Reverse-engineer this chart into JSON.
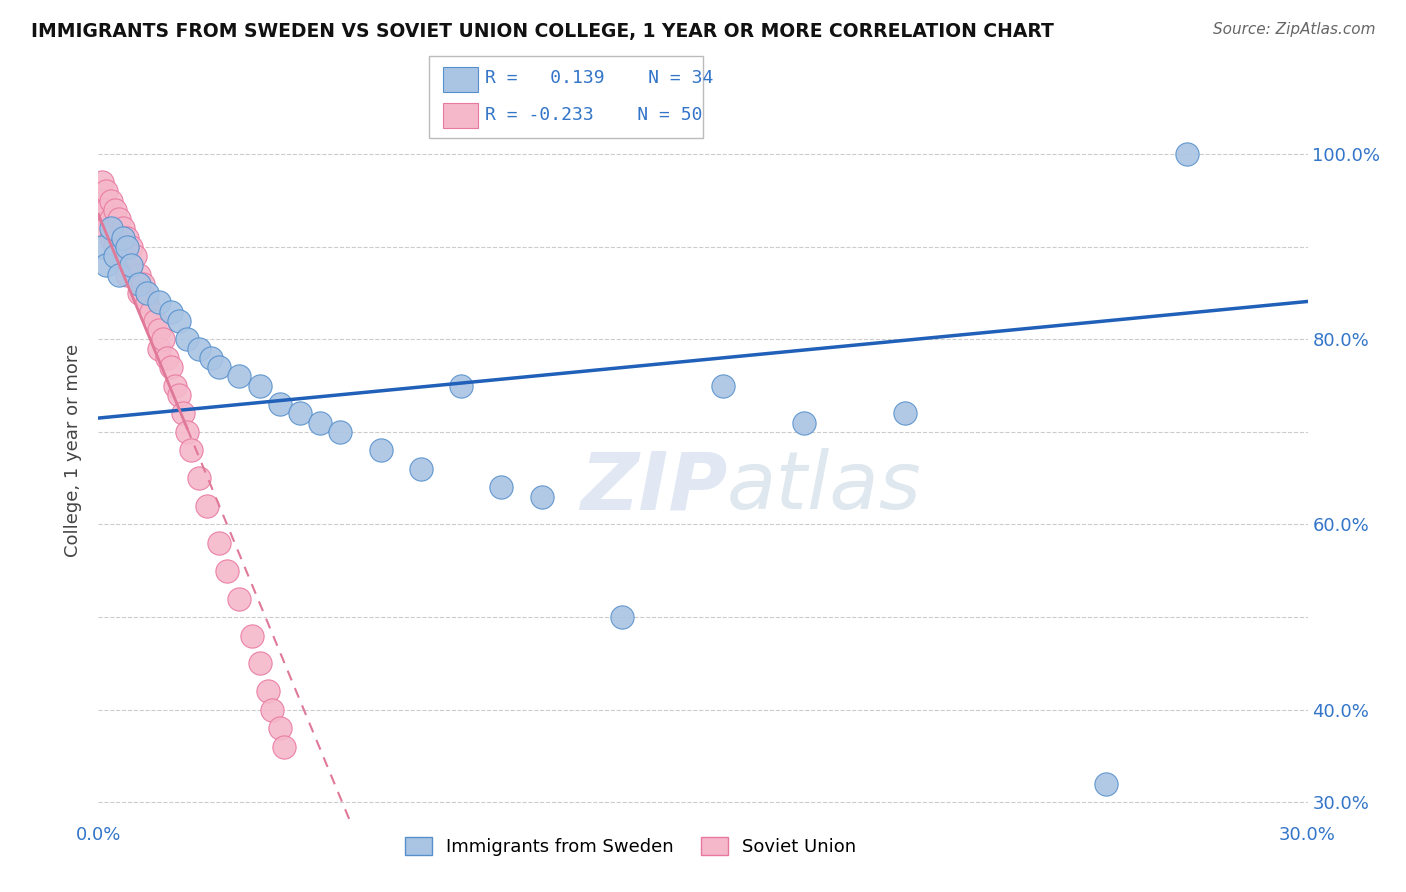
{
  "title": "IMMIGRANTS FROM SWEDEN VS SOVIET UNION COLLEGE, 1 YEAR OR MORE CORRELATION CHART",
  "source": "Source: ZipAtlas.com",
  "ylabel": "College, 1 year or more",
  "xlim": [
    0.0,
    0.3
  ],
  "ylim": [
    0.28,
    1.08
  ],
  "xticks": [
    0.0,
    0.05,
    0.1,
    0.15,
    0.2,
    0.25,
    0.3
  ],
  "xticklabels": [
    "0.0%",
    "",
    "",
    "",
    "",
    "",
    "30.0%"
  ],
  "yticks": [
    0.3,
    0.4,
    0.5,
    0.6,
    0.7,
    0.8,
    0.9,
    1.0
  ],
  "yticklabels_right": [
    "30.0%",
    "40.0%",
    "",
    "60.0%",
    "",
    "80.0%",
    "",
    "100.0%"
  ],
  "sweden_color": "#aac4e4",
  "soviet_color": "#f5b8cb",
  "sweden_edge": "#5590cc",
  "soviet_edge": "#e878a0",
  "sweden_label": "Immigrants from Sweden",
  "soviet_label": "Soviet Union",
  "legend_color": "#3375c8",
  "sweden_trend_color": "#2060b8",
  "soviet_trend_color": "#e07898",
  "watermark_zip": "ZIP",
  "watermark_atlas": "atlas",
  "background_color": "#ffffff",
  "grid_color": "#cccccc",
  "sweden_x": [
    0.001,
    0.002,
    0.003,
    0.004,
    0.005,
    0.006,
    0.007,
    0.008,
    0.01,
    0.012,
    0.015,
    0.018,
    0.02,
    0.022,
    0.025,
    0.028,
    0.03,
    0.035,
    0.04,
    0.045,
    0.05,
    0.055,
    0.06,
    0.07,
    0.08,
    0.09,
    0.1,
    0.11,
    0.13,
    0.155,
    0.175,
    0.2,
    0.25,
    0.27
  ],
  "sweden_y": [
    0.9,
    0.88,
    0.92,
    0.89,
    0.87,
    0.91,
    0.9,
    0.88,
    0.86,
    0.85,
    0.84,
    0.83,
    0.82,
    0.8,
    0.79,
    0.78,
    0.77,
    0.76,
    0.75,
    0.73,
    0.72,
    0.71,
    0.7,
    0.68,
    0.66,
    0.75,
    0.64,
    0.63,
    0.5,
    0.75,
    0.71,
    0.72,
    0.32,
    1.0
  ],
  "soviet_x": [
    0.001,
    0.001,
    0.001,
    0.002,
    0.002,
    0.002,
    0.003,
    0.003,
    0.003,
    0.004,
    0.004,
    0.004,
    0.005,
    0.005,
    0.005,
    0.006,
    0.006,
    0.007,
    0.007,
    0.007,
    0.008,
    0.008,
    0.009,
    0.01,
    0.01,
    0.011,
    0.012,
    0.013,
    0.014,
    0.015,
    0.015,
    0.016,
    0.017,
    0.018,
    0.019,
    0.02,
    0.021,
    0.022,
    0.023,
    0.025,
    0.027,
    0.03,
    0.032,
    0.035,
    0.038,
    0.04,
    0.042,
    0.043,
    0.045,
    0.046
  ],
  "soviet_y": [
    0.97,
    0.95,
    0.93,
    0.96,
    0.94,
    0.92,
    0.95,
    0.93,
    0.91,
    0.94,
    0.92,
    0.9,
    0.93,
    0.91,
    0.89,
    0.92,
    0.9,
    0.91,
    0.89,
    0.87,
    0.9,
    0.88,
    0.89,
    0.87,
    0.85,
    0.86,
    0.84,
    0.83,
    0.82,
    0.81,
    0.79,
    0.8,
    0.78,
    0.77,
    0.75,
    0.74,
    0.72,
    0.7,
    0.68,
    0.65,
    0.62,
    0.58,
    0.55,
    0.52,
    0.48,
    0.45,
    0.42,
    0.4,
    0.38,
    0.36
  ]
}
